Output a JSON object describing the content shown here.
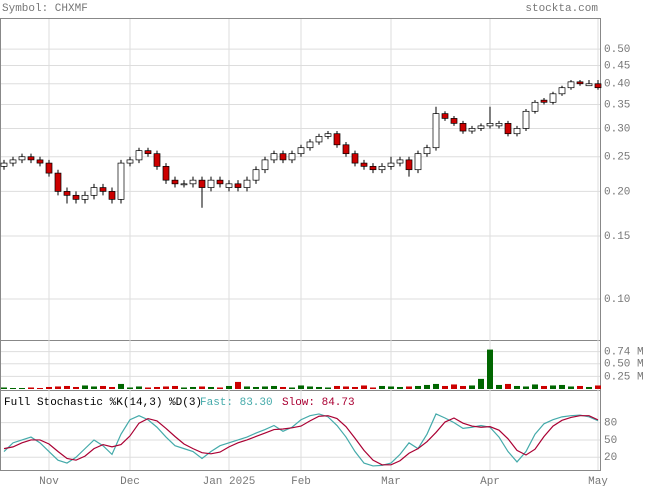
{
  "chart_data": {
    "type": "candlestick",
    "title": "Symbol: CHXMF",
    "source": "stockta.com",
    "log_scale": true,
    "grid": true,
    "up_color": "#ffffff",
    "down_color": "#cc0000",
    "categories": [
      null,
      null,
      null,
      null,
      null,
      "Nov",
      null,
      null,
      null,
      null,
      null,
      null,
      null,
      null,
      "Dec",
      null,
      null,
      null,
      null,
      null,
      null,
      null,
      null,
      null,
      null,
      "Jan 2025",
      null,
      null,
      null,
      null,
      null,
      null,
      null,
      "Feb",
      null,
      null,
      null,
      null,
      null,
      null,
      null,
      null,
      null,
      "Mar",
      null,
      null,
      null,
      null,
      null,
      null,
      null,
      null,
      null,
      null,
      "Apr",
      null,
      null,
      null,
      null,
      null,
      null,
      null,
      null,
      null,
      null,
      null,
      "May"
    ],
    "candles": [
      [
        0.235,
        0.245,
        0.23,
        0.24
      ],
      [
        0.24,
        0.25,
        0.235,
        0.245
      ],
      [
        0.245,
        0.255,
        0.24,
        0.25
      ],
      [
        0.25,
        0.255,
        0.24,
        0.245
      ],
      [
        0.245,
        0.25,
        0.235,
        0.24
      ],
      [
        0.24,
        0.245,
        0.22,
        0.225
      ],
      [
        0.225,
        0.23,
        0.195,
        0.2
      ],
      [
        0.2,
        0.205,
        0.185,
        0.195
      ],
      [
        0.195,
        0.2,
        0.185,
        0.19
      ],
      [
        0.19,
        0.2,
        0.185,
        0.195
      ],
      [
        0.195,
        0.21,
        0.19,
        0.205
      ],
      [
        0.205,
        0.21,
        0.195,
        0.2
      ],
      [
        0.2,
        0.205,
        0.185,
        0.19
      ],
      [
        0.19,
        0.245,
        0.185,
        0.24
      ],
      [
        0.24,
        0.25,
        0.235,
        0.245
      ],
      [
        0.245,
        0.265,
        0.24,
        0.26
      ],
      [
        0.26,
        0.265,
        0.25,
        0.255
      ],
      [
        0.255,
        0.26,
        0.23,
        0.235
      ],
      [
        0.235,
        0.24,
        0.21,
        0.215
      ],
      [
        0.215,
        0.22,
        0.205,
        0.21
      ],
      [
        0.21,
        0.215,
        0.205,
        0.21
      ],
      [
        0.21,
        0.22,
        0.205,
        0.215
      ],
      [
        0.215,
        0.22,
        0.18,
        0.205
      ],
      [
        0.205,
        0.22,
        0.2,
        0.215
      ],
      [
        0.215,
        0.22,
        0.205,
        0.21
      ],
      [
        0.205,
        0.215,
        0.2,
        0.21
      ],
      [
        0.21,
        0.215,
        0.2,
        0.205
      ],
      [
        0.205,
        0.22,
        0.2,
        0.215
      ],
      [
        0.215,
        0.235,
        0.21,
        0.23
      ],
      [
        0.23,
        0.25,
        0.225,
        0.245
      ],
      [
        0.245,
        0.26,
        0.24,
        0.255
      ],
      [
        0.255,
        0.26,
        0.24,
        0.245
      ],
      [
        0.245,
        0.26,
        0.24,
        0.255
      ],
      [
        0.255,
        0.27,
        0.25,
        0.265
      ],
      [
        0.265,
        0.28,
        0.26,
        0.275
      ],
      [
        0.275,
        0.29,
        0.27,
        0.285
      ],
      [
        0.285,
        0.295,
        0.28,
        0.29
      ],
      [
        0.29,
        0.295,
        0.265,
        0.27
      ],
      [
        0.27,
        0.275,
        0.25,
        0.255
      ],
      [
        0.255,
        0.26,
        0.235,
        0.24
      ],
      [
        0.24,
        0.245,
        0.23,
        0.235
      ],
      [
        0.235,
        0.24,
        0.225,
        0.23
      ],
      [
        0.23,
        0.24,
        0.225,
        0.235
      ],
      [
        0.235,
        0.25,
        0.23,
        0.24
      ],
      [
        0.24,
        0.25,
        0.235,
        0.245
      ],
      [
        0.245,
        0.25,
        0.22,
        0.23
      ],
      [
        0.23,
        0.26,
        0.225,
        0.255
      ],
      [
        0.255,
        0.27,
        0.25,
        0.265
      ],
      [
        0.265,
        0.345,
        0.26,
        0.33
      ],
      [
        0.33,
        0.335,
        0.315,
        0.32
      ],
      [
        0.32,
        0.325,
        0.305,
        0.31
      ],
      [
        0.31,
        0.315,
        0.29,
        0.295
      ],
      [
        0.295,
        0.305,
        0.29,
        0.3
      ],
      [
        0.3,
        0.31,
        0.295,
        0.305
      ],
      [
        0.305,
        0.345,
        0.3,
        0.31
      ],
      [
        0.305,
        0.315,
        0.3,
        0.31
      ],
      [
        0.31,
        0.315,
        0.285,
        0.29
      ],
      [
        0.29,
        0.305,
        0.285,
        0.3
      ],
      [
        0.3,
        0.34,
        0.295,
        0.335
      ],
      [
        0.335,
        0.36,
        0.33,
        0.355
      ],
      [
        0.36,
        0.365,
        0.35,
        0.355
      ],
      [
        0.355,
        0.38,
        0.35,
        0.375
      ],
      [
        0.375,
        0.395,
        0.37,
        0.39
      ],
      [
        0.39,
        0.41,
        0.385,
        0.405
      ],
      [
        0.405,
        0.41,
        0.395,
        0.4
      ],
      [
        0.395,
        0.41,
        0.395,
        0.4
      ],
      [
        0.4,
        0.41,
        0.385,
        0.39
      ]
    ],
    "ylim": [
      0.0768,
      0.611
    ],
    "yticks": [
      {
        "value": 0.5,
        "label": "0.50"
      },
      0.45,
      {
        "value": 0.4,
        "label": "0.40"
      },
      0.35,
      {
        "value": 0.3,
        "label": "0.30"
      },
      0.25,
      {
        "value": 0.2,
        "label": "0.20"
      },
      0.15,
      {
        "value": 0.1,
        "label": "0.10"
      }
    ],
    "volume": {
      "values": [
        0.03,
        0.02,
        0.02,
        0.03,
        0.02,
        0.04,
        0.05,
        0.06,
        0.04,
        0.07,
        0.05,
        0.06,
        0.04,
        0.1,
        0.03,
        0.05,
        0.03,
        0.04,
        0.05,
        0.06,
        0.03,
        0.04,
        0.05,
        0.04,
        0.03,
        0.06,
        0.14,
        0.05,
        0.04,
        0.05,
        0.06,
        0.04,
        0.03,
        0.07,
        0.05,
        0.04,
        0.03,
        0.06,
        0.05,
        0.04,
        0.07,
        0.03,
        0.06,
        0.05,
        0.04,
        0.05,
        0.06,
        0.08,
        0.1,
        0.06,
        0.09,
        0.06,
        0.07,
        0.2,
        0.78,
        0.08,
        0.1,
        0.06,
        0.05,
        0.09,
        0.06,
        0.07,
        0.08,
        0.05,
        0.06,
        0.04,
        0.07
      ],
      "up_color": "#006600",
      "down_color": "#cc0000",
      "ylim": [
        0,
        0.95
      ],
      "yticks": [
        {
          "value": 0.74,
          "label": "0.74 M"
        },
        {
          "value": 0.5,
          "label": "0.50 M"
        },
        {
          "value": 0.25,
          "label": "0.25 M"
        }
      ]
    },
    "stochastic": {
      "title": "Full Stochastic %K(14,3) %D(3)",
      "ylim": [
        -2,
        133
      ],
      "yticks": [
        80,
        50,
        20
      ],
      "series": [
        {
          "name": "Fast: 83.30",
          "color": "#44aaaa",
          "values": [
            30,
            45,
            50,
            55,
            45,
            30,
            15,
            10,
            20,
            35,
            50,
            40,
            25,
            60,
            85,
            92,
            85,
            72,
            55,
            40,
            35,
            30,
            18,
            30,
            40,
            45,
            50,
            55,
            62,
            68,
            75,
            65,
            72,
            85,
            92,
            95,
            90,
            75,
            55,
            30,
            10,
            5,
            6,
            10,
            25,
            45,
            35,
            60,
            95,
            88,
            80,
            70,
            72,
            75,
            72,
            55,
            30,
            12,
            30,
            60,
            78,
            85,
            90,
            92,
            93,
            90,
            83.3
          ]
        },
        {
          "name": "Slow: 84.73",
          "color": "#aa0033",
          "values": [
            35,
            38,
            45,
            50,
            50,
            43,
            30,
            18,
            15,
            22,
            35,
            42,
            38,
            42,
            57,
            79,
            87,
            83,
            70,
            56,
            43,
            35,
            28,
            26,
            29,
            38,
            45,
            50,
            56,
            62,
            68,
            69,
            71,
            74,
            83,
            91,
            92,
            87,
            73,
            53,
            32,
            15,
            7,
            7,
            14,
            27,
            35,
            47,
            63,
            81,
            88,
            79,
            74,
            72,
            73,
            67,
            52,
            32,
            24,
            34,
            56,
            74,
            84,
            89,
            92,
            92,
            84.73
          ]
        }
      ]
    }
  }
}
